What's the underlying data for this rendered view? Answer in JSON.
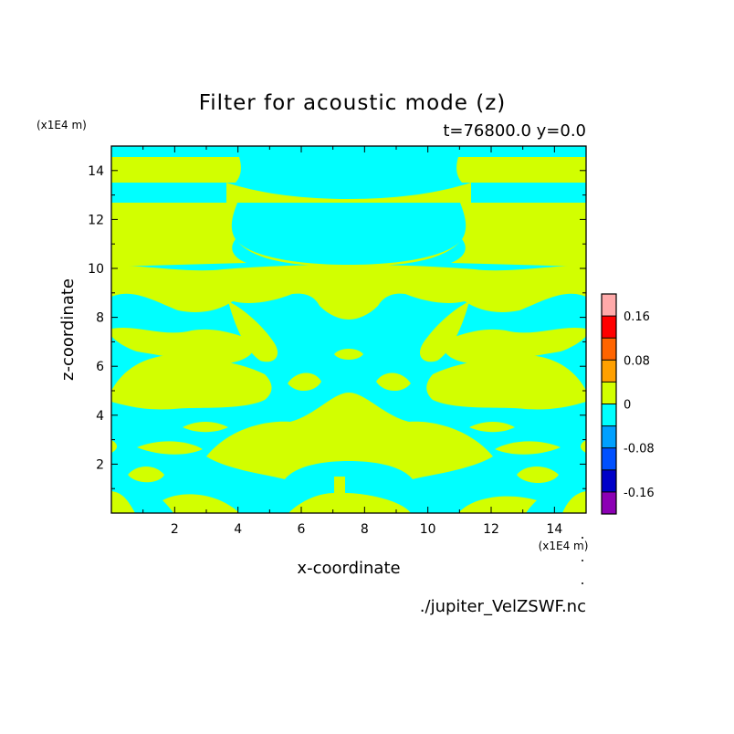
{
  "chart_data": {
    "type": "heatmap",
    "title": "Filter for acoustic mode (z)",
    "subtitle": "t=76800.0 y=0.0",
    "xlabel": "x-coordinate",
    "ylabel": "z-coordinate",
    "x_unit": "(x1E4 m)",
    "y_unit": "(x1E4 m)",
    "source_file": "./jupiter_VelZSWF.nc",
    "xlim": [
      0,
      15
    ],
    "ylim": [
      0,
      15
    ],
    "x_ticks": [
      2,
      4,
      6,
      8,
      10,
      12,
      14
    ],
    "y_ticks": [
      2,
      4,
      6,
      8,
      10,
      12,
      14
    ],
    "x_tick_labels": [
      "2",
      "4",
      "6",
      "8",
      "10",
      "12",
      "14"
    ],
    "y_tick_labels": [
      "2",
      "4",
      "6",
      "8",
      "10",
      "12",
      "14"
    ],
    "colorbar": {
      "levels": [
        -0.2,
        -0.16,
        -0.12,
        -0.08,
        -0.04,
        0,
        0.04,
        0.08,
        0.12,
        0.16,
        0.2
      ],
      "colors": [
        "#8c00b4",
        "#0000c8",
        "#0050ff",
        "#00a0ff",
        "#00ffff",
        "#d2ff00",
        "#ffa000",
        "#ff6400",
        "#ff0000",
        "#ffaaaa"
      ],
      "tick_values": [
        -0.16,
        -0.08,
        0,
        0.08,
        0.16
      ],
      "tick_labels": [
        "-0.16",
        "-0.08",
        "0",
        "0.08",
        "0.16"
      ]
    },
    "field": {
      "background_level": "negative (-0.04 to 0)",
      "background_color": "#00ffff",
      "foreground_level": "positive (0 to 0.04)",
      "foreground_color": "#d2ff00"
    }
  }
}
